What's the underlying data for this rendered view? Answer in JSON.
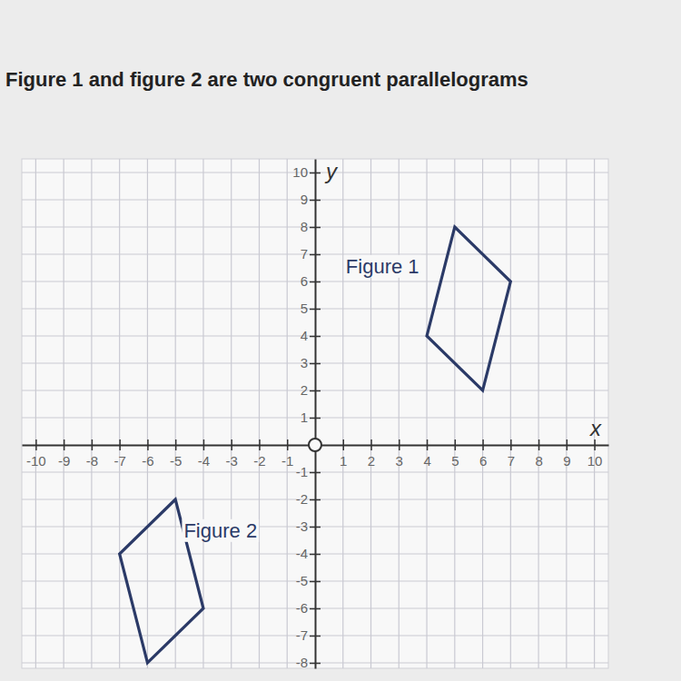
{
  "chart_data": {
    "type": "polygon",
    "title": "Figure 1 and figure 2 are two congruent parallelograms",
    "xlabel": "x",
    "ylabel": "y",
    "xlim": [
      -10.5,
      10.5
    ],
    "ylim": [
      -8.2,
      10.5
    ],
    "xticks": [
      -10,
      -9,
      -8,
      -7,
      -6,
      -5,
      -4,
      -3,
      -2,
      -1,
      1,
      2,
      3,
      4,
      5,
      6,
      7,
      8,
      9,
      10
    ],
    "yticks": [
      -8,
      -7,
      -6,
      -5,
      -4,
      -3,
      -2,
      -1,
      1,
      2,
      3,
      4,
      5,
      6,
      7,
      8,
      9,
      10
    ],
    "grid": true,
    "color": "#2b3a67",
    "series": [
      {
        "name": "Figure 1",
        "x": [
          5,
          7,
          6,
          4
        ],
        "y": [
          8,
          6,
          2,
          4
        ],
        "label_at": [
          1.1,
          6.5
        ]
      },
      {
        "name": "Figure 2",
        "x": [
          -5,
          -7,
          -6,
          -4
        ],
        "y": [
          -2,
          -4,
          -8,
          -6
        ],
        "label_at": [
          -4.7,
          -3.2
        ]
      }
    ]
  }
}
